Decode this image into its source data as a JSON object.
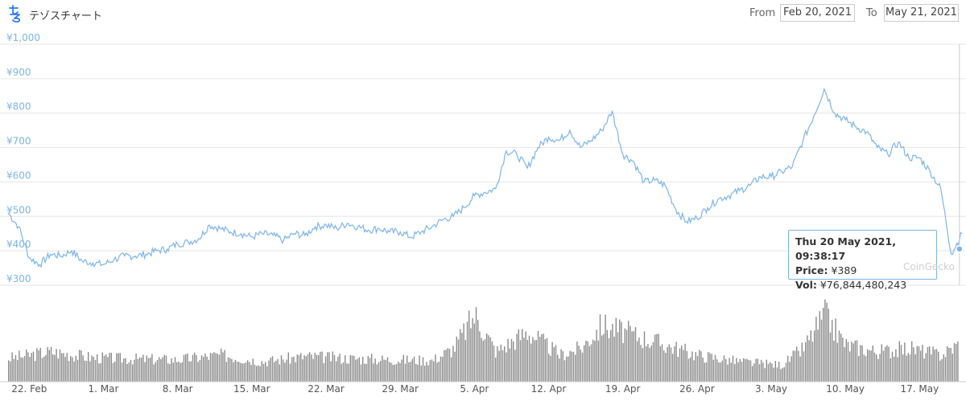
{
  "header": {
    "coin_name": "テゾスチャート",
    "from_label": "From",
    "from_value": "Feb 20, 2021",
    "to_label": "To",
    "to_value": "May 21, 2021"
  },
  "tooltip": {
    "date": "Thu 20 May 2021, 09:38:17",
    "price_label": "Price:",
    "price_value": "¥389",
    "vol_label": "Vol:",
    "vol_value": "¥76,844,480,243"
  },
  "watermark": "CoinGecko",
  "colors": {
    "price_line": "#7cb5ec",
    "volume": "#8a8a8a",
    "axis_text": "#7cb5ec",
    "grid": "#e6e6e6"
  },
  "chart_data": {
    "type": "line",
    "title": "",
    "xlabel": "",
    "ylabel": "",
    "ylim": [
      300,
      1000
    ],
    "y_ticks": [
      "¥1,000",
      "¥900",
      "¥800",
      "¥700",
      "¥600",
      "¥500",
      "¥400",
      "¥300"
    ],
    "y_tick_values": [
      1000,
      900,
      800,
      700,
      600,
      500,
      400,
      300
    ],
    "x_range": [
      "2021-02-20",
      "2021-05-21"
    ],
    "x_ticks": [
      "22. Feb",
      "1. Mar",
      "8. Mar",
      "15. Mar",
      "22. Mar",
      "29. Mar",
      "5. Apr",
      "12. Apr",
      "19. Apr",
      "26. Apr",
      "3. May",
      "10. May",
      "17. May"
    ],
    "x_tick_dates": [
      "2021-02-22",
      "2021-03-01",
      "2021-03-08",
      "2021-03-15",
      "2021-03-22",
      "2021-03-29",
      "2021-04-05",
      "2021-04-12",
      "2021-04-19",
      "2021-04-26",
      "2021-05-03",
      "2021-05-10",
      "2021-05-17"
    ],
    "series": [
      {
        "x": [
          "2021-02-20",
          "2021-02-21",
          "2021-02-22",
          "2021-02-23",
          "2021-02-24",
          "2021-02-25",
          "2021-02-26",
          "2021-02-27",
          "2021-02-28",
          "2021-03-01",
          "2021-03-02",
          "2021-03-03",
          "2021-03-04",
          "2021-03-05",
          "2021-03-06",
          "2021-03-07",
          "2021-03-08",
          "2021-03-09",
          "2021-03-10",
          "2021-03-11",
          "2021-03-12",
          "2021-03-13",
          "2021-03-14",
          "2021-03-15",
          "2021-03-16",
          "2021-03-17",
          "2021-03-18",
          "2021-03-19",
          "2021-03-20",
          "2021-03-21",
          "2021-03-22",
          "2021-03-23",
          "2021-03-24",
          "2021-03-25",
          "2021-03-26",
          "2021-03-27",
          "2021-03-28",
          "2021-03-29",
          "2021-03-30",
          "2021-03-31",
          "2021-04-01",
          "2021-04-02",
          "2021-04-03",
          "2021-04-04",
          "2021-04-05",
          "2021-04-06",
          "2021-04-07",
          "2021-04-08",
          "2021-04-09",
          "2021-04-10",
          "2021-04-11",
          "2021-04-12",
          "2021-04-13",
          "2021-04-14",
          "2021-04-15",
          "2021-04-16",
          "2021-04-17",
          "2021-04-18",
          "2021-04-19",
          "2021-04-20",
          "2021-04-21",
          "2021-04-22",
          "2021-04-23",
          "2021-04-24",
          "2021-04-25",
          "2021-04-26",
          "2021-04-27",
          "2021-04-28",
          "2021-04-29",
          "2021-04-30",
          "2021-05-01",
          "2021-05-02",
          "2021-05-03",
          "2021-05-04",
          "2021-05-05",
          "2021-05-06",
          "2021-05-07",
          "2021-05-08",
          "2021-05-09",
          "2021-05-10",
          "2021-05-11",
          "2021-05-12",
          "2021-05-13",
          "2021-05-14",
          "2021-05-15",
          "2021-05-16",
          "2021-05-17",
          "2021-05-18",
          "2021-05-19",
          "2021-05-20",
          "2021-05-21"
        ],
        "y": [
          510,
          470,
          380,
          360,
          390,
          385,
          400,
          370,
          365,
          360,
          375,
          385,
          385,
          390,
          400,
          405,
          420,
          425,
          435,
          475,
          465,
          455,
          450,
          440,
          450,
          445,
          430,
          450,
          445,
          470,
          475,
          465,
          480,
          470,
          460,
          465,
          455,
          455,
          440,
          455,
          470,
          490,
          500,
          525,
          560,
          570,
          580,
          690,
          680,
          640,
          700,
          730,
          720,
          750,
          700,
          720,
          750,
          805,
          680,
          660,
          600,
          605,
          590,
          520,
          485,
          495,
          525,
          550,
          560,
          575,
          590,
          615,
          615,
          630,
          645,
          720,
          790,
          870,
          800,
          780,
          760,
          745,
          700,
          680,
          715,
          670,
          670,
          630,
          580,
          390,
          450
        ]
      }
    ],
    "volume": {
      "x": [
        "2021-02-20",
        "2021-02-24",
        "2021-02-28",
        "2021-03-04",
        "2021-03-08",
        "2021-03-12",
        "2021-03-16",
        "2021-03-20",
        "2021-03-24",
        "2021-03-28",
        "2021-04-01",
        "2021-04-03",
        "2021-04-05",
        "2021-04-07",
        "2021-04-10",
        "2021-04-13",
        "2021-04-15",
        "2021-04-17",
        "2021-04-19",
        "2021-04-21",
        "2021-04-23",
        "2021-04-26",
        "2021-04-30",
        "2021-05-04",
        "2021-05-06",
        "2021-05-08",
        "2021-05-10",
        "2021-05-13",
        "2021-05-16",
        "2021-05-19",
        "2021-05-21"
      ],
      "level": [
        0.35,
        0.45,
        0.36,
        0.34,
        0.33,
        0.4,
        0.3,
        0.38,
        0.35,
        0.33,
        0.32,
        0.5,
        1.0,
        0.45,
        0.75,
        0.4,
        0.5,
        0.85,
        0.75,
        0.65,
        0.55,
        0.4,
        0.3,
        0.25,
        0.5,
        1.0,
        0.55,
        0.45,
        0.5,
        0.4,
        0.6
      ]
    }
  }
}
